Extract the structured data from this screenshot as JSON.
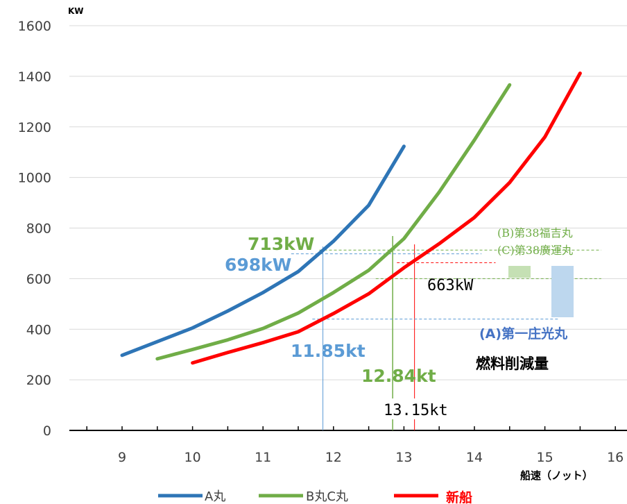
{
  "chart_data": {
    "type": "line",
    "y_unit_label": "KW",
    "x_unit_label": "船速（ノット）",
    "xlim": [
      8,
      16.2
    ],
    "ylim": [
      0,
      1600
    ],
    "x_ticks": [
      9,
      10,
      11,
      12,
      13,
      14,
      15,
      16
    ],
    "y_ticks": [
      0,
      200,
      400,
      600,
      800,
      1000,
      1200,
      1400,
      1600
    ],
    "grid": "horizontal",
    "legend_position": "bottom",
    "series": [
      {
        "name": "A丸",
        "color": "#2e75b6",
        "x": [
          9,
          10,
          10.5,
          11,
          11.5,
          12,
          12.5,
          13
        ],
        "y": [
          297,
          405,
          472,
          545,
          628,
          748,
          890,
          1123
        ]
      },
      {
        "name": "B丸C丸",
        "color": "#70ad47",
        "x": [
          9.5,
          10,
          10.5,
          11,
          11.5,
          12,
          12.5,
          13,
          13.5,
          14,
          14.5
        ],
        "y": [
          283,
          320,
          358,
          403,
          464,
          545,
          633,
          758,
          942,
          1148,
          1366
        ]
      },
      {
        "name": "新船",
        "color": "#ff0000",
        "x": [
          10,
          10.5,
          11,
          11.5,
          12,
          12.5,
          13,
          13.5,
          14,
          14.5,
          15,
          15.5
        ],
        "y": [
          267,
          308,
          347,
          390,
          462,
          540,
          643,
          738,
          842,
          980,
          1160,
          1412
        ]
      }
    ],
    "annotations": {
      "a_power": "698kW",
      "b_power": "713kW",
      "new_power": "663kW",
      "a_speed": "11.85kt",
      "b_speed": "12.84kt",
      "new_speed": "13.15kt",
      "label_b": "(B)第38福吉丸",
      "label_c": "(C)第38廣運丸",
      "label_a": "(A)第一庄光丸",
      "reduction_label": "燃料削減量"
    }
  }
}
